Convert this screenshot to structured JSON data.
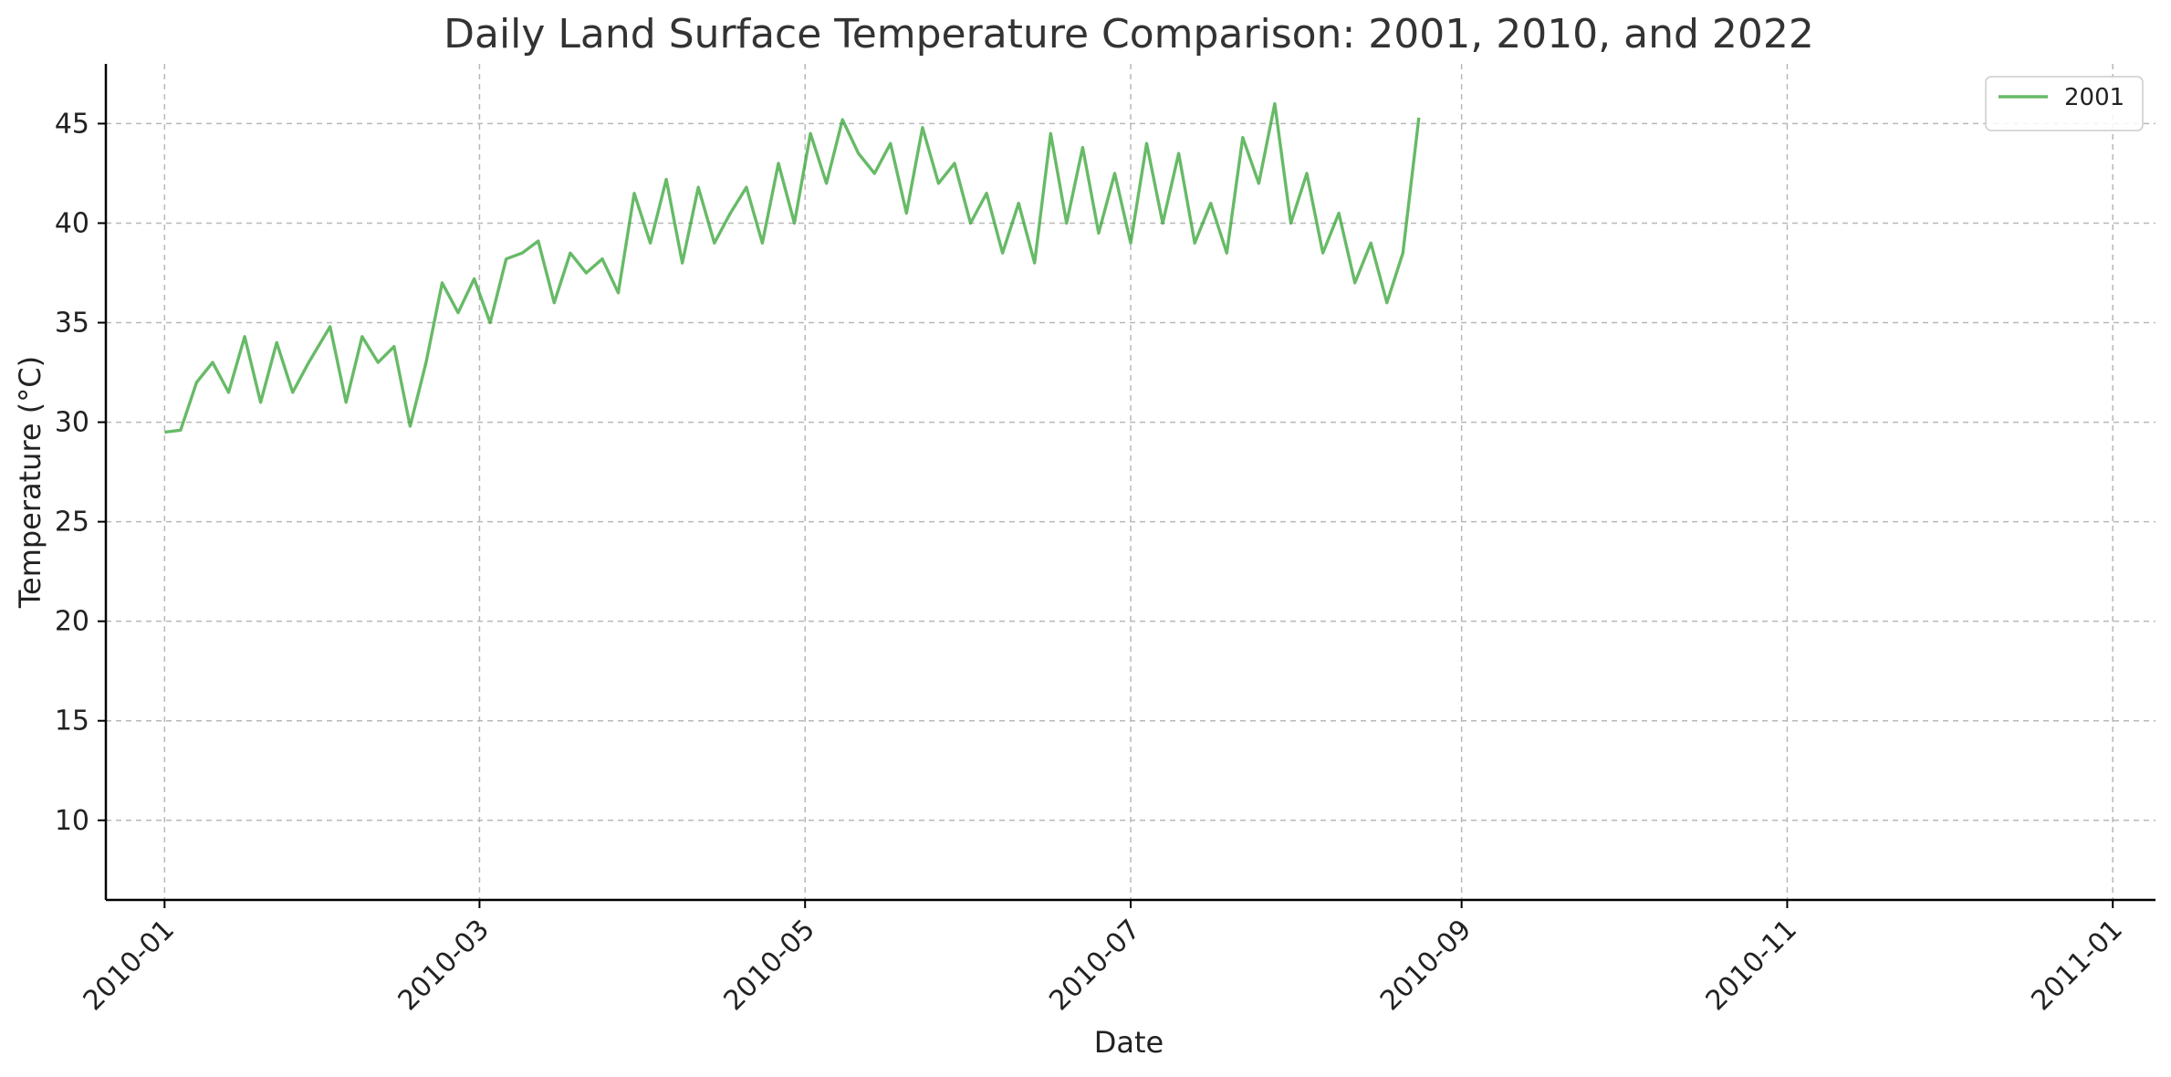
{
  "chart_data": {
    "type": "line",
    "title": "Daily Land Surface Temperature Comparison: 2001, 2010, and 2022",
    "xlabel": "Date",
    "ylabel": "Temperature (°C)",
    "x_range": [
      "2009-12-21",
      "2011-01-09"
    ],
    "ylim": [
      6,
      48
    ],
    "x_ticks": [
      "2010-01",
      "2010-03",
      "2010-05",
      "2010-07",
      "2010-09",
      "2010-11",
      "2011-01"
    ],
    "y_ticks": [
      10,
      15,
      20,
      25,
      30,
      35,
      40,
      45
    ],
    "grid": true,
    "legend": "top-right",
    "series": [
      {
        "name": "2001",
        "color": "#2ca02c",
        "points": [
          [
            "2010-01-01",
            29.5
          ],
          [
            "2010-01-04",
            29.6
          ],
          [
            "2010-01-07",
            32
          ],
          [
            "2010-01-10",
            33
          ],
          [
            "2010-01-13",
            31.5
          ],
          [
            "2010-01-16",
            34.3
          ],
          [
            "2010-01-19",
            31
          ],
          [
            "2010-01-22",
            34
          ],
          [
            "2010-01-25",
            31.5
          ],
          [
            "2010-01-28",
            33
          ],
          [
            "2010-02-01",
            34.8
          ],
          [
            "2010-02-04",
            31
          ],
          [
            "2010-02-07",
            34.3
          ],
          [
            "2010-02-10",
            33
          ],
          [
            "2010-02-13",
            33.8
          ],
          [
            "2010-02-16",
            29.8
          ],
          [
            "2010-02-19",
            33
          ],
          [
            "2010-02-22",
            37
          ],
          [
            "2010-02-25",
            35.5
          ],
          [
            "2010-02-28",
            37.2
          ],
          [
            "2010-03-03",
            35
          ],
          [
            "2010-03-06",
            38.2
          ],
          [
            "2010-03-09",
            38.5
          ],
          [
            "2010-03-12",
            39.1
          ],
          [
            "2010-03-15",
            36
          ],
          [
            "2010-03-18",
            38.5
          ],
          [
            "2010-03-21",
            37.5
          ],
          [
            "2010-03-24",
            38.2
          ],
          [
            "2010-03-27",
            36.5
          ],
          [
            "2010-03-30",
            41.5
          ],
          [
            "2010-04-02",
            39
          ],
          [
            "2010-04-05",
            42.2
          ],
          [
            "2010-04-08",
            38
          ],
          [
            "2010-04-11",
            41.8
          ],
          [
            "2010-04-14",
            39
          ],
          [
            "2010-04-17",
            40.5
          ],
          [
            "2010-04-20",
            41.8
          ],
          [
            "2010-04-23",
            39
          ],
          [
            "2010-04-26",
            43
          ],
          [
            "2010-04-29",
            40
          ],
          [
            "2010-05-02",
            44.5
          ],
          [
            "2010-05-05",
            42
          ],
          [
            "2010-05-08",
            45.2
          ],
          [
            "2010-05-11",
            43.5
          ],
          [
            "2010-05-14",
            42.5
          ],
          [
            "2010-05-17",
            44
          ],
          [
            "2010-05-20",
            40.5
          ],
          [
            "2010-05-23",
            44.8
          ],
          [
            "2010-05-26",
            42
          ],
          [
            "2010-05-29",
            43
          ],
          [
            "2010-06-01",
            40
          ],
          [
            "2010-06-04",
            41.5
          ],
          [
            "2010-06-07",
            38.5
          ],
          [
            "2010-06-10",
            41
          ],
          [
            "2010-06-13",
            38
          ],
          [
            "2010-06-16",
            44.5
          ],
          [
            "2010-06-19",
            40
          ],
          [
            "2010-06-22",
            43.8
          ],
          [
            "2010-06-25",
            39.5
          ],
          [
            "2010-06-28",
            42.5
          ],
          [
            "2010-07-01",
            39
          ],
          [
            "2010-07-04",
            44
          ],
          [
            "2010-07-07",
            40
          ],
          [
            "2010-07-10",
            43.5
          ],
          [
            "2010-07-13",
            39
          ],
          [
            "2010-07-16",
            41
          ],
          [
            "2010-07-19",
            38.5
          ],
          [
            "2010-07-22",
            44.3
          ],
          [
            "2010-07-25",
            42
          ],
          [
            "2010-07-28",
            46
          ],
          [
            "2010-07-31",
            40
          ],
          [
            "2010-08-03",
            42.5
          ],
          [
            "2010-08-06",
            38.5
          ],
          [
            "2010-08-09",
            40.5
          ],
          [
            "2010-08-12",
            37
          ],
          [
            "2010-08-15",
            39
          ],
          [
            "2010-08-18",
            36
          ],
          [
            "2010-08-21",
            38.5
          ],
          [
            "2010-08-24",
            45.3
          ]
        ]
      }
    ]
  }
}
